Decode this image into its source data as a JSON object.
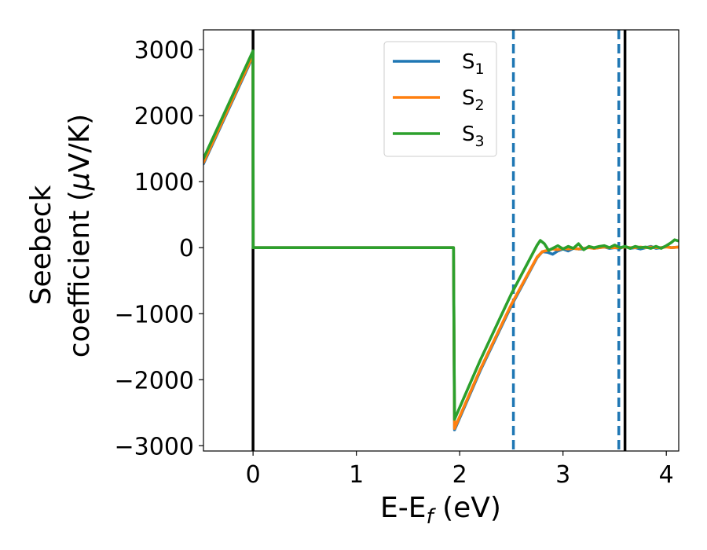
{
  "chart_data": {
    "type": "line",
    "xlabel": "E-E",
    "xlabel_sub": "f",
    "xlabel_unit": " (eV)",
    "ylabel_line1": "Seebeck",
    "ylabel_line2": "coefficient  (",
    "ylabel_mu": "μ",
    "ylabel_unit": "V/K)",
    "xlim": [
      -0.48,
      4.12
    ],
    "ylim": [
      -3080,
      3300
    ],
    "xticks": [
      0,
      1,
      2,
      3,
      4
    ],
    "xtick_labels": [
      "0",
      "1",
      "2",
      "3",
      "4"
    ],
    "yticks": [
      3000,
      2000,
      1000,
      0,
      -1000,
      -2000,
      -3000
    ],
    "ytick_labels": [
      "3000",
      "2000",
      "1000",
      "0",
      "−1000",
      "−2000",
      "−3000"
    ],
    "grid": false,
    "legend_position": "top-center",
    "vlines": [
      {
        "x": 0,
        "style": "solid",
        "color": "#000000"
      },
      {
        "x": 3.6,
        "style": "solid",
        "color": "#000000"
      },
      {
        "x": 2.52,
        "style": "dashed",
        "color": "#1f77b4"
      },
      {
        "x": 3.54,
        "style": "dashed",
        "color": "#1f77b4"
      }
    ],
    "series": [
      {
        "name": "S",
        "sub": "1",
        "color": "#1f77b4",
        "x": [
          -0.48,
          0.0,
          0.001,
          1.94,
          1.95,
          2.2,
          2.5,
          2.75,
          2.8,
          2.85,
          2.9,
          2.95,
          3.0,
          3.05,
          3.1,
          3.15,
          3.2,
          3.25,
          3.3,
          3.35,
          3.4,
          3.45,
          3.5,
          3.55,
          3.6,
          3.65,
          3.7,
          3.75,
          3.8,
          3.85,
          3.9,
          3.95,
          4.0,
          4.05,
          4.12
        ],
        "y": [
          1270,
          2900,
          0,
          0,
          -2760,
          -1860,
          -880,
          -150,
          -60,
          -70,
          -100,
          -50,
          -20,
          -50,
          -10,
          -20,
          -20,
          10,
          -10,
          0,
          10,
          -10,
          0,
          -10,
          20,
          -10,
          0,
          -20,
          0,
          20,
          -10,
          0,
          20,
          0,
          10
        ]
      },
      {
        "name": "S",
        "sub": "2",
        "color": "#ff7f0e",
        "x": [
          -0.48,
          0.0,
          0.001,
          1.94,
          1.95,
          2.2,
          2.5,
          2.75,
          2.8,
          2.85,
          2.9,
          2.95,
          3.0,
          3.05,
          3.1,
          3.15,
          3.2,
          3.25,
          3.3,
          3.35,
          3.4,
          3.45,
          3.5,
          3.55,
          3.6,
          3.65,
          3.7,
          3.75,
          3.8,
          3.85,
          3.9,
          3.95,
          4.0,
          4.05,
          4.12
        ],
        "y": [
          1290,
          2920,
          0,
          0,
          -2740,
          -1840,
          -860,
          -140,
          -60,
          -40,
          -20,
          -30,
          -10,
          -20,
          -10,
          -20,
          -10,
          0,
          -10,
          0,
          10,
          0,
          0,
          0,
          10,
          0,
          0,
          10,
          0,
          10,
          0,
          0,
          10,
          0,
          10
        ]
      },
      {
        "name": "S",
        "sub": "3",
        "color": "#2ca02c",
        "x": [
          -0.48,
          0.0,
          0.001,
          1.94,
          1.95,
          2.2,
          2.5,
          2.75,
          2.78,
          2.82,
          2.86,
          2.9,
          2.95,
          3.0,
          3.05,
          3.1,
          3.15,
          3.2,
          3.25,
          3.3,
          3.35,
          3.4,
          3.45,
          3.5,
          3.55,
          3.6,
          3.65,
          3.7,
          3.75,
          3.8,
          3.85,
          3.9,
          3.95,
          4.0,
          4.05,
          4.08,
          4.12
        ],
        "y": [
          1350,
          2980,
          0,
          0,
          -2600,
          -1700,
          -700,
          40,
          110,
          60,
          -40,
          -10,
          30,
          -20,
          20,
          -10,
          60,
          -30,
          20,
          0,
          20,
          30,
          0,
          40,
          0,
          20,
          -10,
          20,
          0,
          10,
          -10,
          20,
          -10,
          30,
          80,
          120,
          100
        ]
      }
    ]
  }
}
